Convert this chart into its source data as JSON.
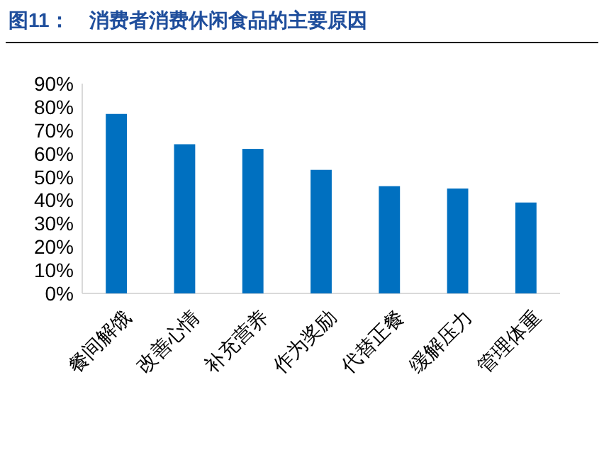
{
  "chart_data": {
    "type": "bar",
    "title": "图11：　消费者消费休闲食品的主要原因",
    "categories": [
      "餐间解饿",
      "改善心情",
      "补充营养",
      "作为奖励",
      "代替正餐",
      "缓解压力",
      "管理体重"
    ],
    "values": [
      77,
      64,
      62,
      53,
      46,
      45,
      39
    ],
    "color": "#0070c0",
    "ylim": [
      0,
      90
    ],
    "yticks": [
      {
        "value": 0,
        "label": "0%"
      },
      {
        "value": 10,
        "label": "10%"
      },
      {
        "value": 20,
        "label": "20%"
      },
      {
        "value": 30,
        "label": "30%"
      },
      {
        "value": 40,
        "label": "40%"
      },
      {
        "value": 50,
        "label": "50%"
      },
      {
        "value": 60,
        "label": "60%"
      },
      {
        "value": 70,
        "label": "70%"
      },
      {
        "value": 80,
        "label": "80%"
      },
      {
        "value": 90,
        "label": "90%"
      }
    ],
    "grid": false
  }
}
